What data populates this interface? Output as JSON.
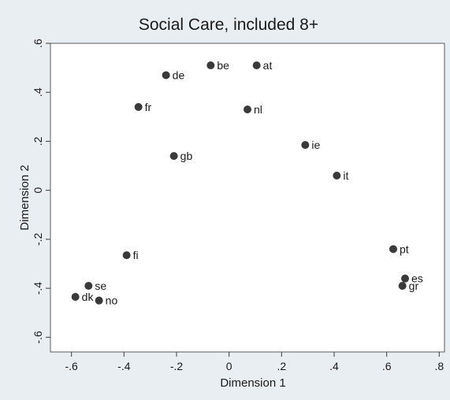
{
  "chart_data": {
    "type": "scatter",
    "title": "Social Care, included 8+",
    "xlabel": "Dimension 1",
    "ylabel": "Dimension 2",
    "xlim": [
      -0.68,
      0.82
    ],
    "ylim": [
      -0.66,
      0.6
    ],
    "xticks": [
      {
        "value": -0.6,
        "label": "-.6"
      },
      {
        "value": -0.4,
        "label": "-.4"
      },
      {
        "value": -0.2,
        "label": "-.2"
      },
      {
        "value": 0,
        "label": "0"
      },
      {
        "value": 0.2,
        "label": ".2"
      },
      {
        "value": 0.4,
        "label": ".4"
      },
      {
        "value": 0.6,
        "label": ".6"
      },
      {
        "value": 0.8,
        "label": ".8"
      }
    ],
    "yticks": [
      {
        "value": 0.6,
        "label": ".6"
      },
      {
        "value": 0.4,
        "label": ".4"
      },
      {
        "value": 0.2,
        "label": ".2"
      },
      {
        "value": 0,
        "label": "0"
      },
      {
        "value": -0.2,
        "label": "-.2"
      },
      {
        "value": -0.4,
        "label": "-.4"
      },
      {
        "value": -0.6,
        "label": "-.6"
      }
    ],
    "grid": false,
    "legend": "none",
    "points": [
      {
        "label": "be",
        "x": -0.07,
        "y": 0.51
      },
      {
        "label": "at",
        "x": 0.105,
        "y": 0.51
      },
      {
        "label": "de",
        "x": -0.24,
        "y": 0.47
      },
      {
        "label": "fr",
        "x": -0.345,
        "y": 0.34
      },
      {
        "label": "nl",
        "x": 0.07,
        "y": 0.33
      },
      {
        "label": "ie",
        "x": 0.29,
        "y": 0.185
      },
      {
        "label": "gb",
        "x": -0.21,
        "y": 0.14
      },
      {
        "label": "it",
        "x": 0.41,
        "y": 0.06
      },
      {
        "label": "pt",
        "x": 0.625,
        "y": -0.24
      },
      {
        "label": "fi",
        "x": -0.39,
        "y": -0.265
      },
      {
        "label": "es",
        "x": 0.67,
        "y": -0.36
      },
      {
        "label": "se",
        "x": -0.535,
        "y": -0.39
      },
      {
        "label": "gr",
        "x": 0.66,
        "y": -0.39
      },
      {
        "label": "dk",
        "x": -0.585,
        "y": -0.435
      },
      {
        "label": "no",
        "x": -0.495,
        "y": -0.45
      }
    ],
    "colors": {
      "background": "#e9eef2",
      "plot_area": "#ffffff",
      "marker": "#3a3a3a",
      "text": "#1a1a1a"
    }
  }
}
